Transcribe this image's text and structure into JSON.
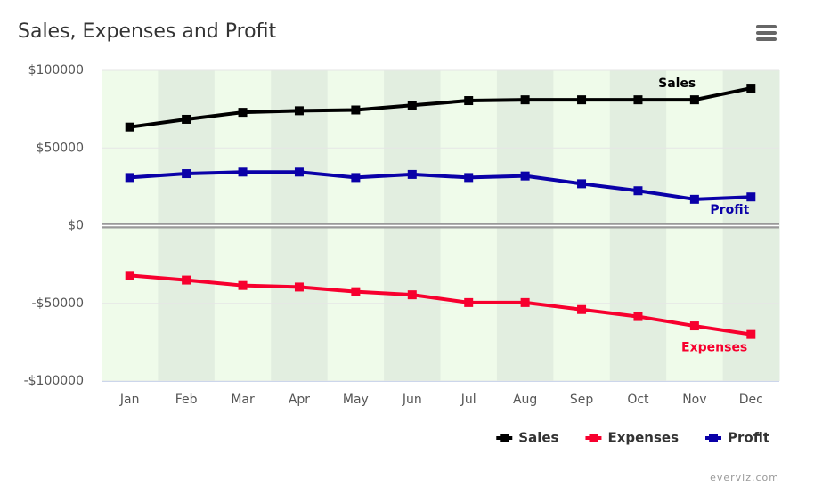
{
  "chart_data": {
    "type": "line",
    "title": "Sales, Expenses and Profit",
    "categories": [
      "Jan",
      "Feb",
      "Mar",
      "Apr",
      "May",
      "Jun",
      "Jul",
      "Aug",
      "Sep",
      "Oct",
      "Nov",
      "Dec"
    ],
    "series": [
      {
        "name": "Sales",
        "color": "#000000",
        "values": [
          63500,
          68500,
          73000,
          74000,
          74500,
          77500,
          80500,
          81000,
          81000,
          81000,
          81000,
          88500
        ]
      },
      {
        "name": "Expenses",
        "color": "#f7002e",
        "values": [
          -32000,
          -35000,
          -38500,
          -39500,
          -42500,
          -44500,
          -49500,
          -49500,
          -54000,
          -58500,
          -64500,
          -70000
        ]
      },
      {
        "name": "Profit",
        "color": "#0a00a8",
        "values": [
          31000,
          33500,
          34500,
          34500,
          31000,
          33000,
          31000,
          32000,
          27000,
          22500,
          17000,
          18500
        ]
      }
    ],
    "ylim": [
      -100000,
      100000
    ],
    "yticks": [
      {
        "value": -100000,
        "label": "-$100000"
      },
      {
        "value": -50000,
        "label": "-$50000"
      },
      {
        "value": 0,
        "label": "$0"
      },
      {
        "value": 50000,
        "label": "$50000"
      },
      {
        "value": 100000,
        "label": "$100000"
      }
    ],
    "band_colors": [
      "#effbea",
      "#e2eee0"
    ],
    "grid": true,
    "legend": "bottom-right",
    "credits": "everviz.com"
  }
}
